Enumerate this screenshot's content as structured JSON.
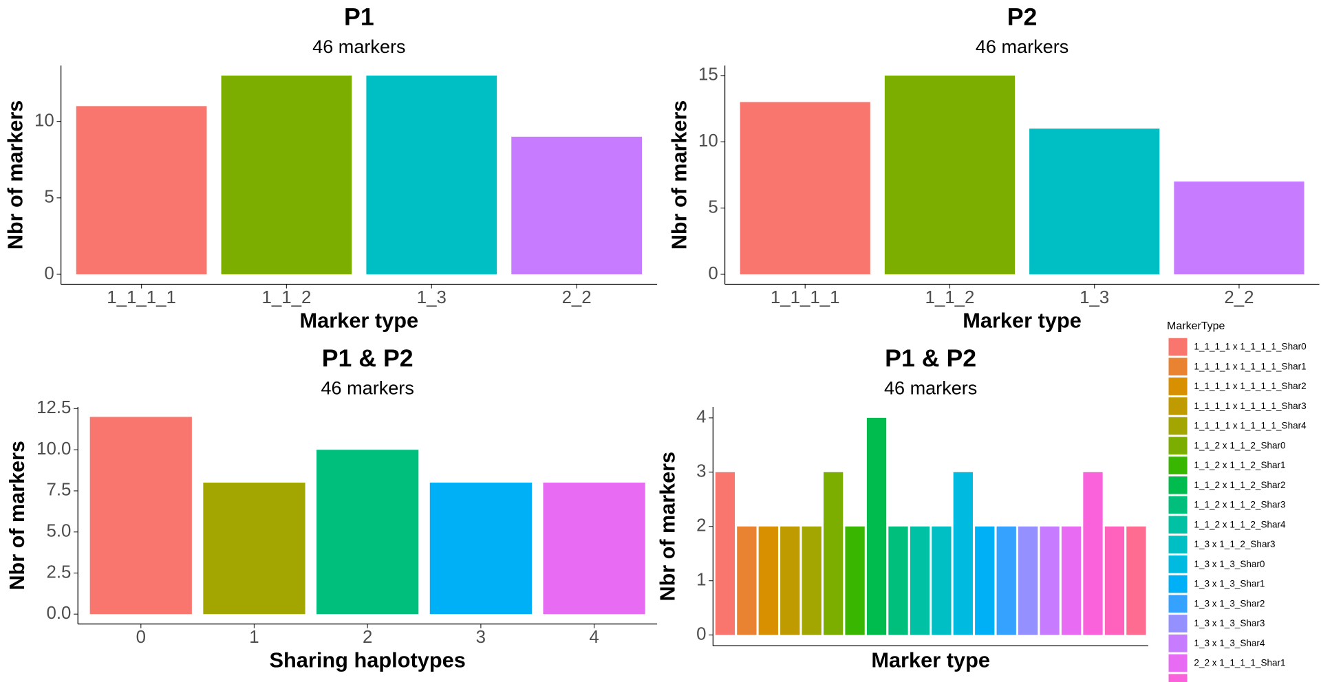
{
  "chart_data": [
    {
      "type": "bar",
      "title": "P1",
      "subtitle": "46 markers",
      "x_label": "Marker type",
      "y_label": "Nbr of markers",
      "categories": [
        "1_1_1_1",
        "1_1_2",
        "1_3",
        "2_2"
      ],
      "values": [
        11,
        13,
        13,
        9
      ],
      "colors": [
        "#F8766D",
        "#7CAE00",
        "#00BFC4",
        "#C77CFF"
      ],
      "ylim": [
        -0.65,
        13.65
      ],
      "yticks": [
        0,
        5,
        10
      ]
    },
    {
      "type": "bar",
      "title": "P2",
      "subtitle": "46 markers",
      "x_label": "Marker type",
      "y_label": "Nbr of markers",
      "categories": [
        "1_1_1_1",
        "1_1_2",
        "1_3",
        "2_2"
      ],
      "values": [
        13,
        15,
        11,
        7
      ],
      "colors": [
        "#F8766D",
        "#7CAE00",
        "#00BFC4",
        "#C77CFF"
      ],
      "ylim": [
        -0.75,
        15.75
      ],
      "yticks": [
        0,
        5,
        10,
        15
      ]
    },
    {
      "type": "bar",
      "title": "P1 & P2",
      "subtitle": "46 markers",
      "x_label": "Sharing haplotypes",
      "y_label": "Nbr of markers",
      "categories": [
        "0",
        "1",
        "2",
        "3",
        "4"
      ],
      "values": [
        12,
        8,
        10,
        8,
        8
      ],
      "colors": [
        "#F8766D",
        "#A3A500",
        "#00BF7D",
        "#00B0F6",
        "#E76BF3"
      ],
      "ylim": [
        -0.6,
        12.6
      ],
      "yticks": [
        {
          "value": 0,
          "label": "0.0"
        },
        {
          "value": 2.5,
          "label": "2.5"
        },
        {
          "value": 5,
          "label": "5.0"
        },
        {
          "value": 7.5,
          "label": "7.5"
        },
        {
          "value": 10,
          "label": "10.0"
        },
        {
          "value": 12.5,
          "label": "12.5"
        }
      ]
    },
    {
      "type": "bar",
      "title": "P1 & P2",
      "subtitle": "46 markers",
      "x_label": "Marker type",
      "y_label": "Nbr of markers",
      "legend_title": "MarkerType",
      "categories": [
        "1_1_1_1 x 1_1_1_1_Shar0",
        "1_1_1_1 x 1_1_1_1_Shar1",
        "1_1_1_1 x 1_1_1_1_Shar2",
        "1_1_1_1 x 1_1_1_1_Shar3",
        "1_1_1_1 x 1_1_1_1_Shar4",
        "1_1_2 x 1_1_2_Shar0",
        "1_1_2 x 1_1_2_Shar1",
        "1_1_2 x 1_1_2_Shar2",
        "1_1_2 x 1_1_2_Shar3",
        "1_1_2 x 1_1_2_Shar4",
        "1_3 x 1_1_2_Shar3",
        "1_3 x 1_3_Shar0",
        "1_3 x 1_3_Shar1",
        "1_3 x 1_3_Shar2",
        "1_3 x 1_3_Shar3",
        "1_3 x 1_3_Shar4",
        "2_2 x 1_1_1_1_Shar1",
        null,
        null,
        null
      ],
      "values": [
        3,
        2,
        2,
        2,
        2,
        3,
        2,
        4,
        2,
        2,
        2,
        3,
        2,
        2,
        2,
        2,
        2,
        3,
        2,
        2
      ],
      "colors": [
        "#F8766D",
        "#EA8331",
        "#D89000",
        "#C09B00",
        "#A3A500",
        "#7CAE00",
        "#39B600",
        "#00BB4E",
        "#00BF7D",
        "#00C1A3",
        "#00BFC4",
        "#00BAE0",
        "#00B0F6",
        "#35A2FF",
        "#9590FF",
        "#C77CFF",
        "#E76BF3",
        "#FA62DB",
        "#FF62BC",
        "#FF6C91"
      ],
      "ylim": [
        -0.2,
        4.2
      ],
      "yticks": [
        0,
        1,
        2,
        3,
        4
      ]
    }
  ]
}
